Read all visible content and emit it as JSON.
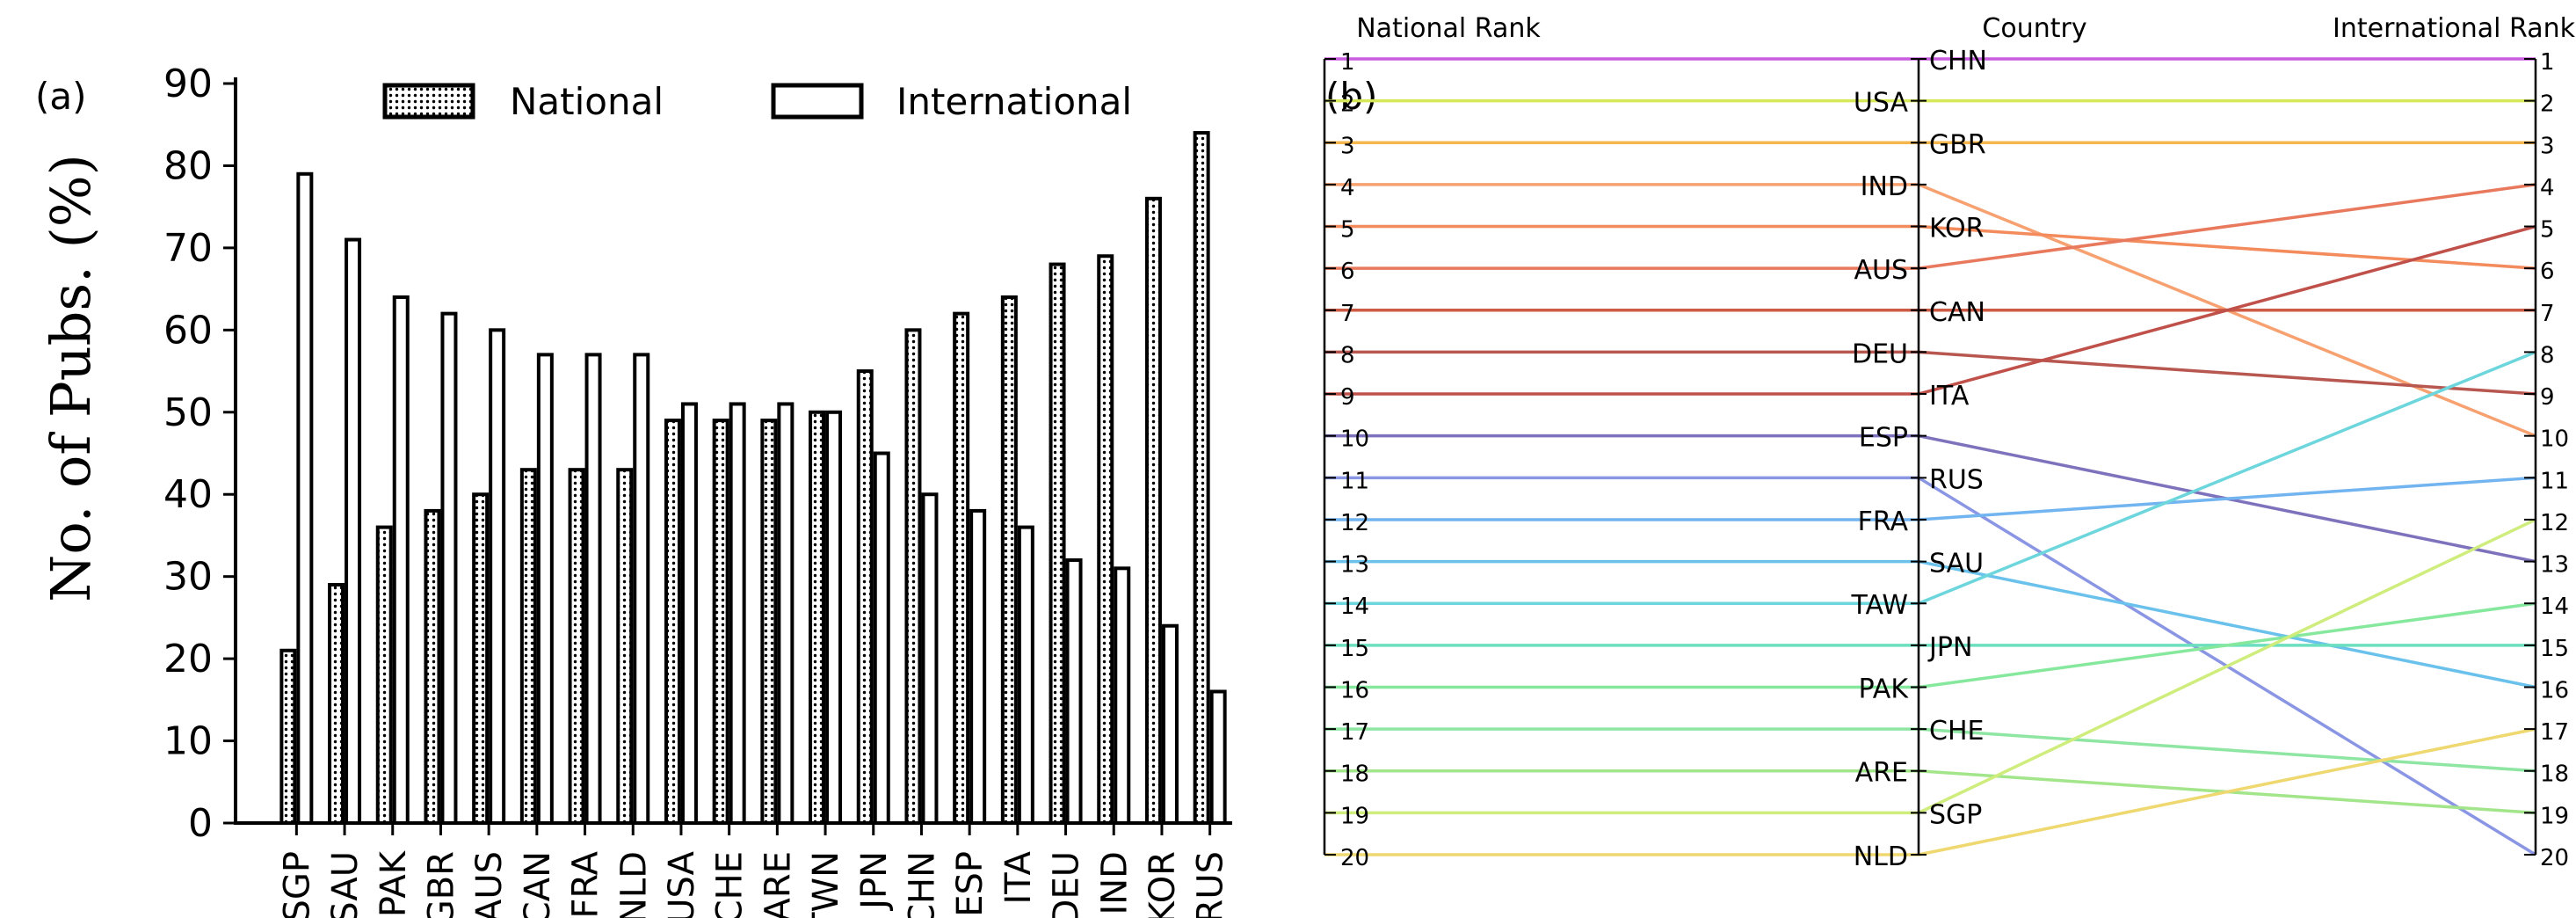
{
  "panel_a": {
    "label": "(a)",
    "chart_data": {
      "type": "bar",
      "ylabel": "No. of Pubs. (%)",
      "xlabel": "",
      "ylim": [
        0,
        90
      ],
      "yticks": [
        0,
        10,
        20,
        30,
        40,
        50,
        60,
        70,
        80,
        90
      ],
      "categories": [
        "SGP",
        "SAU",
        "PAK",
        "GBR",
        "AUS",
        "CAN",
        "FRA",
        "NLD",
        "USA",
        "CHE",
        "ARE",
        "TWN",
        "JPN",
        "CHN",
        "ESP",
        "ITA",
        "DEU",
        "IND",
        "KOR",
        "RUS"
      ],
      "series": [
        {
          "name": "National",
          "pattern": "dotted",
          "values": [
            21,
            29,
            36,
            38,
            40,
            43,
            43,
            43,
            49,
            49,
            49,
            50,
            55,
            60,
            62,
            64,
            68,
            69,
            76,
            84
          ]
        },
        {
          "name": "International",
          "pattern": "hollow",
          "values": [
            79,
            71,
            64,
            62,
            60,
            57,
            57,
            57,
            51,
            51,
            51,
            50,
            45,
            40,
            38,
            36,
            32,
            31,
            24,
            16
          ]
        }
      ],
      "legend": "top-center",
      "grid": false
    }
  },
  "panel_b": {
    "label": "(b)",
    "chart_data": {
      "type": "line",
      "subtype": "slope",
      "headers": {
        "left": "National Rank",
        "center": "Country",
        "right": "International Rank"
      },
      "ranks": [
        1,
        2,
        3,
        4,
        5,
        6,
        7,
        8,
        9,
        10,
        11,
        12,
        13,
        14,
        15,
        16,
        17,
        18,
        19,
        20
      ],
      "axis_ranges": {
        "national": [
          1,
          20
        ],
        "international": [
          1,
          20
        ],
        "country_order": [
          1,
          20
        ]
      },
      "countries": [
        "CHN",
        "USA",
        "GBR",
        "IND",
        "KOR",
        "AUS",
        "CAN",
        "DEU",
        "ITA",
        "ESP",
        "RUS",
        "FRA",
        "SAU",
        "TAW",
        "JPN",
        "PAK",
        "CHE",
        "ARE",
        "SGP",
        "NLD"
      ],
      "country_label_side": [
        "right",
        "left",
        "right",
        "left",
        "right",
        "left",
        "right",
        "left",
        "right",
        "left",
        "right",
        "left",
        "right",
        "left",
        "right",
        "left",
        "right",
        "left",
        "right",
        "left"
      ],
      "national_rank": [
        1,
        2,
        3,
        4,
        5,
        6,
        7,
        8,
        9,
        10,
        11,
        12,
        13,
        14,
        15,
        16,
        17,
        18,
        19,
        20
      ],
      "country_order_rank": [
        1,
        2,
        3,
        4,
        5,
        6,
        7,
        8,
        9,
        10,
        11,
        12,
        13,
        14,
        15,
        16,
        17,
        18,
        19,
        20
      ],
      "international_rank": [
        1,
        2,
        3,
        10,
        6,
        4,
        7,
        9,
        5,
        13,
        20,
        11,
        16,
        8,
        15,
        14,
        18,
        19,
        12,
        17
      ],
      "line_colors": [
        "#c75cdf",
        "#d6e85a",
        "#f5b74d",
        "#f7a070",
        "#f38b5d",
        "#e9795d",
        "#cc5a45",
        "#b7574f",
        "#bf514a",
        "#7e72bd",
        "#8a96e4",
        "#72b4ef",
        "#69c1ec",
        "#6dd6dd",
        "#6bdfbe",
        "#86e89d",
        "#8fe5a2",
        "#a3e58b",
        "#cfed7c",
        "#efd870"
      ]
    }
  }
}
